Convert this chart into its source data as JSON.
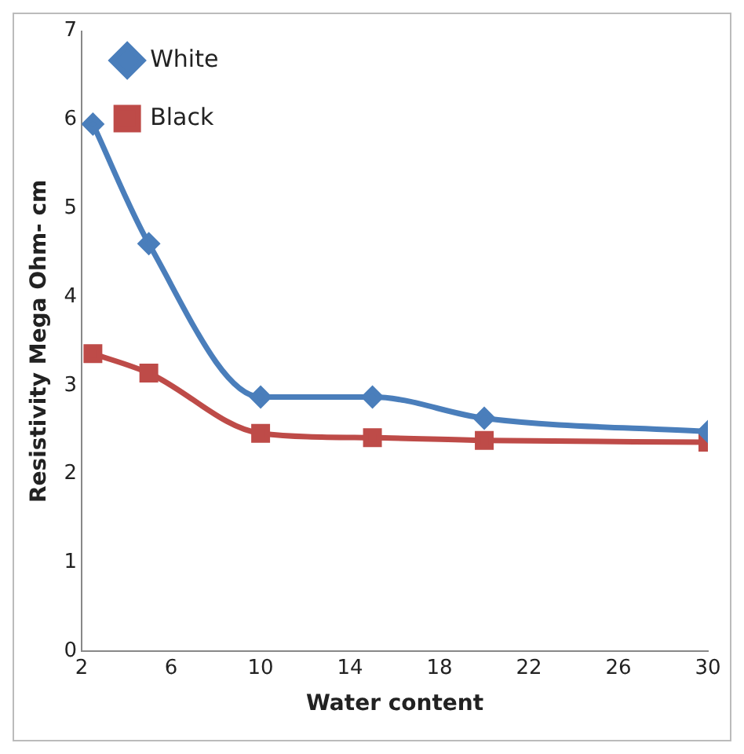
{
  "chart_data": {
    "type": "line",
    "xlabel": "Water content",
    "ylabel": "Resistivity Mega Ohm- cm",
    "x": [
      2.5,
      5,
      10,
      15,
      20,
      30
    ],
    "series": [
      {
        "name": "White",
        "color": "#4a7ebb",
        "marker": "diamond",
        "values": [
          5.95,
          4.6,
          2.87,
          2.87,
          2.63,
          2.48
        ]
      },
      {
        "name": "Black",
        "color": "#be4b48",
        "marker": "square",
        "values": [
          3.36,
          3.14,
          2.46,
          2.41,
          2.38,
          2.36
        ]
      }
    ],
    "xlim": [
      2,
      30
    ],
    "xticks": [
      2,
      6,
      10,
      14,
      18,
      22,
      26,
      30
    ],
    "ylim": [
      0,
      7
    ],
    "yticks": [
      0,
      1,
      2,
      3,
      4,
      5,
      6,
      7
    ],
    "grid": false,
    "legend": "top left"
  }
}
